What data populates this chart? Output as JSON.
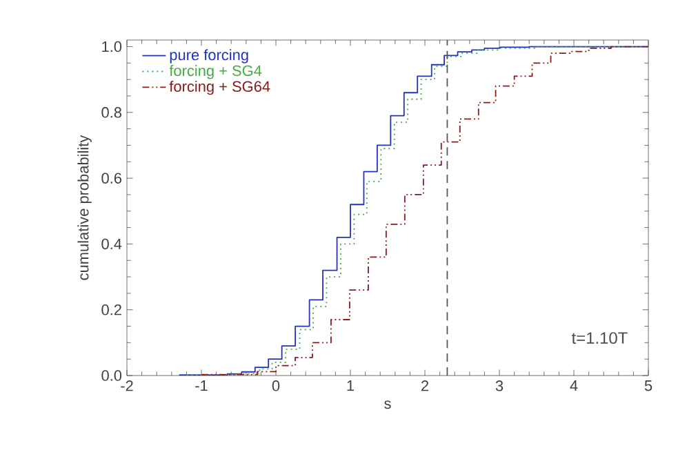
{
  "chart_data": {
    "type": "step",
    "xlabel": "s",
    "ylabel": "cumulative probability",
    "xlim": [
      -2,
      5
    ],
    "ylim": [
      0,
      1.02
    ],
    "xticks": [
      -2,
      -1,
      0,
      1,
      2,
      3,
      4,
      5
    ],
    "yticks": [
      {
        "value": 0,
        "label": "0.0"
      },
      {
        "value": 0.2,
        "label": "0.2"
      },
      {
        "value": 0.4,
        "label": "0.4"
      },
      {
        "value": 0.6,
        "label": "0.6"
      },
      {
        "value": 0.8,
        "label": "0.8"
      },
      {
        "value": 1.0,
        "label": "1.0"
      }
    ],
    "grid": false,
    "legend": "top left",
    "series": [
      {
        "name": "pure forcing",
        "color": "#2233bb",
        "line_style": "solid",
        "x": [
          -1.3,
          -0.65,
          -0.46,
          -0.28,
          -0.1,
          0.08,
          0.26,
          0.45,
          0.63,
          0.82,
          1.0,
          1.18,
          1.36,
          1.54,
          1.72,
          1.9,
          2.09,
          2.26,
          2.44,
          2.63,
          2.8,
          3.0,
          3.4,
          5
        ],
        "values": [
          0.002,
          0.005,
          0.011,
          0.025,
          0.05,
          0.09,
          0.15,
          0.23,
          0.32,
          0.42,
          0.52,
          0.62,
          0.7,
          0.79,
          0.86,
          0.91,
          0.945,
          0.973,
          0.984,
          0.99,
          0.995,
          0.998,
          1.0,
          1.0
        ]
      },
      {
        "name": "forcing + SG4",
        "color": "#44aa44",
        "line_style": "dotted",
        "x": [
          -1.2,
          -0.5,
          -0.22,
          -0.05,
          0.13,
          0.32,
          0.5,
          0.68,
          0.87,
          1.05,
          1.22,
          1.41,
          1.59,
          1.77,
          1.95,
          2.13,
          2.3,
          2.5,
          2.7,
          3.0,
          3.5,
          5
        ],
        "values": [
          0.002,
          0.005,
          0.02,
          0.04,
          0.08,
          0.14,
          0.21,
          0.3,
          0.4,
          0.49,
          0.59,
          0.69,
          0.77,
          0.84,
          0.9,
          0.94,
          0.97,
          0.98,
          0.99,
          0.995,
          1.0,
          1.0
        ]
      },
      {
        "name": "forcing + SG64",
        "color": "#8b1a1a",
        "line_style": "dashdot",
        "x": [
          -1.0,
          -0.25,
          0.0,
          0.26,
          0.49,
          0.74,
          0.99,
          1.24,
          1.48,
          1.73,
          1.98,
          2.22,
          2.47,
          2.72,
          2.95,
          3.2,
          3.44,
          3.69,
          3.95,
          4.2,
          4.5,
          5
        ],
        "values": [
          0.003,
          0.012,
          0.03,
          0.055,
          0.1,
          0.17,
          0.26,
          0.36,
          0.46,
          0.55,
          0.64,
          0.71,
          0.78,
          0.83,
          0.88,
          0.91,
          0.95,
          0.98,
          0.985,
          0.995,
          1.0,
          1.0
        ]
      }
    ],
    "ref_lines": [
      {
        "axis": "x",
        "value": 2.3,
        "color": "#555555",
        "line_style": "dashed"
      }
    ],
    "annotations": [
      "t=1.10T"
    ]
  }
}
